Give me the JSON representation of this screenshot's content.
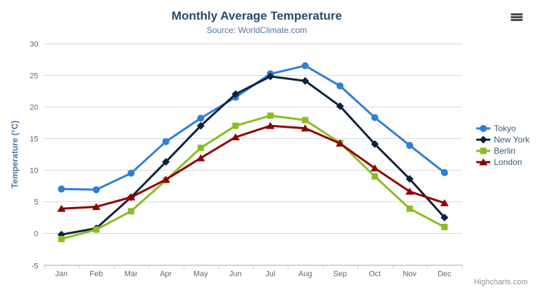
{
  "credit": "Highcharts.com",
  "icons": {
    "export_menu": "hamburger-menu"
  },
  "colors": {
    "title": "#274b6d",
    "subtitle": "#4d759e",
    "axis_label": "#666666",
    "axis_title": "#4d759e",
    "legend_text": "#3E576F",
    "gridline": "#D8D8D8",
    "axis_line": "#C0D0E0",
    "credit": "#909090",
    "export_icon": "#4d4d4d"
  },
  "chart_data": {
    "type": "line",
    "title": "Monthly Average Temperature",
    "subtitle": "Source: WorldClimate.com",
    "xlabel": "",
    "ylabel": "Temperature (°C)",
    "categories": [
      "Jan",
      "Feb",
      "Mar",
      "Apr",
      "May",
      "Jun",
      "Jul",
      "Aug",
      "Sep",
      "Oct",
      "Nov",
      "Dec"
    ],
    "ylim": [
      -5,
      30
    ],
    "yticks": [
      -5,
      0,
      5,
      10,
      15,
      20,
      25,
      30
    ],
    "grid": true,
    "legend_position": "right-middle",
    "series": [
      {
        "name": "Tokyo",
        "color": "#2f7ed8",
        "marker": "circle",
        "values": [
          7.0,
          6.9,
          9.5,
          14.5,
          18.2,
          21.5,
          25.2,
          26.5,
          23.3,
          18.3,
          13.9,
          9.6
        ]
      },
      {
        "name": "New York",
        "color": "#0d233a",
        "marker": "diamond",
        "values": [
          -0.2,
          0.8,
          5.7,
          11.3,
          17.0,
          22.0,
          24.8,
          24.1,
          20.1,
          14.1,
          8.6,
          2.5
        ]
      },
      {
        "name": "Berlin",
        "color": "#8bbc21",
        "marker": "square",
        "values": [
          -0.9,
          0.6,
          3.5,
          8.4,
          13.5,
          17.0,
          18.6,
          17.9,
          14.3,
          9.0,
          3.9,
          1.0
        ]
      },
      {
        "name": "London",
        "color": "#910000",
        "marker": "triangle",
        "values": [
          3.9,
          4.2,
          5.7,
          8.5,
          11.9,
          15.2,
          17.0,
          16.6,
          14.2,
          10.3,
          6.6,
          4.8
        ]
      }
    ]
  }
}
